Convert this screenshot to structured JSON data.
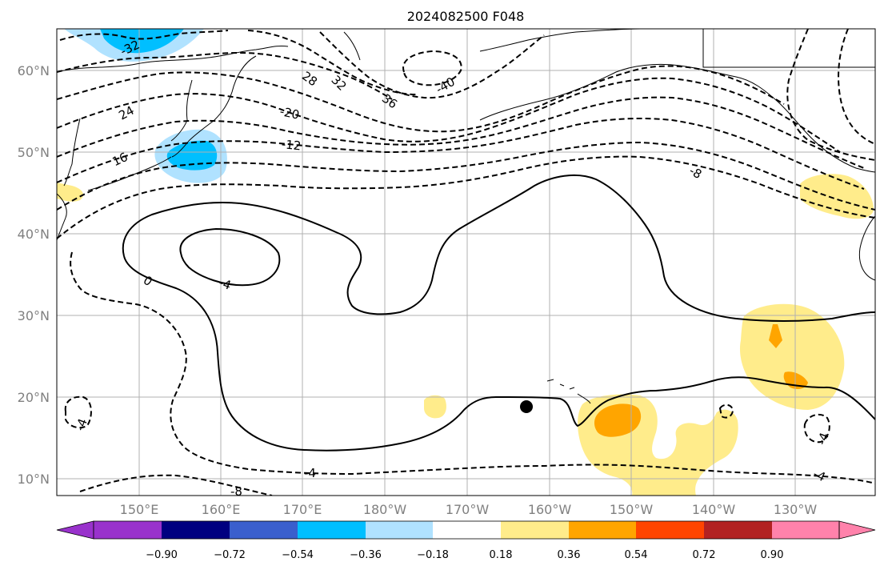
{
  "title": "2024082500 F048",
  "lat_ticks": [
    "60°N",
    "50°N",
    "40°N",
    "30°N",
    "20°N",
    "10°N"
  ],
  "lon_ticks": [
    "150°E",
    "160°E",
    "170°E",
    "180°W",
    "170°W",
    "160°W",
    "150°W",
    "140°W",
    "130°W"
  ],
  "colorbar": {
    "ticks": [
      "−0.90",
      "−0.72",
      "−0.54",
      "−0.36",
      "−0.18",
      "0.18",
      "0.36",
      "0.54",
      "0.72",
      "0.90"
    ],
    "colors": {
      "lt_-0.90": "#9932cc",
      "-0.90_-0.72": "#000080",
      "-0.72_-0.54": "#3a5fcd",
      "-0.54_-0.36": "#00bfff",
      "-0.36_-0.18": "#b0e2ff",
      "-0.18_0.18": "#ffffff",
      "0.18_0.36": "#ffec8b",
      "0.36_0.54": "#ffa500",
      "0.54_0.72": "#ff4500",
      "0.72_0.90": "#b22222",
      "gt_0.90": "#ff82ab"
    }
  },
  "contour_labels": {
    "m32": "-32",
    "m28": "28",
    "m32b": "32",
    "m36": "36",
    "m40": "-40",
    "m24": "24",
    "m20": "-20",
    "m16": "16",
    "m12": "-12",
    "m8": "-8",
    "zero": "0",
    "m4a": "-4",
    "m4b": "-4",
    "m4c": "-4",
    "m8b": "-8",
    "m4d": "-4",
    "m4e": "-4"
  },
  "marker": "black-dot"
}
